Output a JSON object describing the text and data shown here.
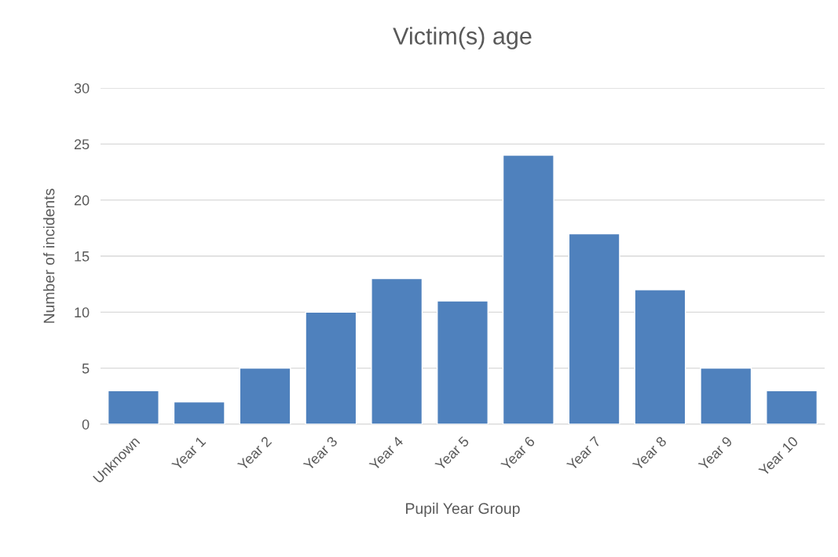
{
  "chart_data": {
    "type": "bar",
    "title": "Victim(s) age",
    "xlabel": "Pupil Year Group",
    "ylabel": "Number of incidents",
    "categories": [
      "Unknown",
      "Year 1",
      "Year 2",
      "Year 3",
      "Year 4",
      "Year 5",
      "Year 6",
      "Year 7",
      "Year 8",
      "Year 9",
      "Year 10"
    ],
    "values": [
      3,
      2,
      5,
      10,
      13,
      11,
      24,
      17,
      12,
      5,
      3
    ],
    "color": "#4f81bd",
    "ylim": [
      0,
      30
    ],
    "yticks": [
      0,
      5,
      10,
      15,
      20,
      25,
      30
    ],
    "grid": "y",
    "legend": false
  }
}
